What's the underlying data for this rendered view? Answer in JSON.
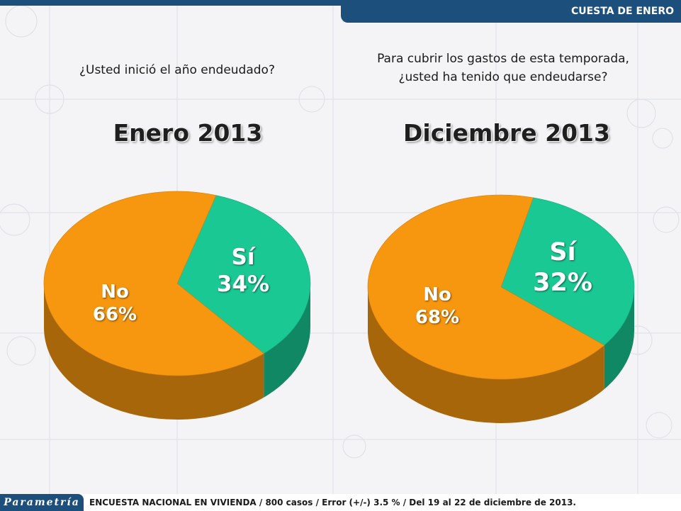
{
  "header": {
    "section_label": "CUESTA DE ENERO",
    "color": "#1d4f7c"
  },
  "questions": {
    "left": "¿Usted inició el año endeudado?",
    "right_line1": "Para cubrir los gastos de esta temporada,",
    "right_line2": "¿usted ha tenido que endeudarse?"
  },
  "chart_data": [
    {
      "type": "pie",
      "title": "Enero 2013",
      "slices": [
        {
          "label": "Sí",
          "value": 34,
          "display": "34%",
          "color": "#19c893"
        },
        {
          "label": "No",
          "value": 66,
          "display": "66%",
          "color": "#f7960f"
        }
      ]
    },
    {
      "type": "pie",
      "title": "Diciembre 2013",
      "slices": [
        {
          "label": "Sí",
          "value": 32,
          "display": "32%",
          "color": "#19c893"
        },
        {
          "label": "No",
          "value": 68,
          "display": "68%",
          "color": "#f7960f"
        }
      ]
    }
  ],
  "footer": {
    "logo": "Parametría",
    "note": "ENCUESTA NACIONAL EN VIVIENDA / 800 casos / Error (+/-) 3.5 % / Del 19 al 22 de diciembre de 2013."
  }
}
